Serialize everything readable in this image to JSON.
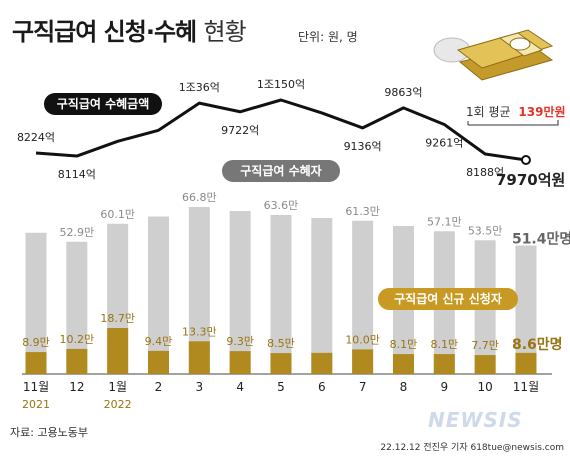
{
  "header": {
    "title_bold": "구직급여 신청·수혜",
    "title_light": "현황",
    "unit": "단위: 원, 명"
  },
  "legend": {
    "amount_label": "구직급여 수혜금액",
    "recipients_label": "구직급여 수혜자",
    "new_applicants_label": "구직급여 신규 신청자"
  },
  "callout": {
    "avg_prefix": "1회 평균",
    "avg_value": "139만원"
  },
  "colors": {
    "line": "#111111",
    "gray_bar": "#cfcfcf",
    "gold_bar": "#b08a1e",
    "gold_label": "#9a7412",
    "gray_label": "#8a8a8a",
    "accent_red": "#e8312a",
    "legend_gold_bg": "#c99a23"
  },
  "source": "자료: 고용노동부",
  "credit": "22.12.12 전진우 기자 618tue@newsis.com",
  "watermark": "NEWSIS",
  "chart_data": {
    "type": "bar",
    "categories": [
      "11월",
      "12",
      "1월",
      "2",
      "3",
      "4",
      "5",
      "6",
      "7",
      "8",
      "9",
      "10",
      "11월"
    ],
    "year_labels": [
      "2021",
      "",
      "2022",
      "",
      "",
      "",
      "",
      "",
      "",
      "",
      "",
      "",
      ""
    ],
    "series": [
      {
        "name": "구직급여 수혜금액",
        "chart": "line",
        "values": [
          8224,
          8114,
          null,
          null,
          10036,
          9722,
          10150,
          null,
          9136,
          9863,
          9261,
          8188,
          7970
        ],
        "labels": [
          "8224억",
          "8114억",
          "",
          "",
          "1조36억",
          "9722억",
          "1조150억",
          "",
          "9136억",
          "9863억",
          "9261억",
          "8188억",
          "7970억원"
        ]
      },
      {
        "name": "구직급여 수혜자",
        "chart": "bar",
        "values": [
          null,
          52.9,
          60.1,
          null,
          66.8,
          null,
          63.6,
          null,
          61.3,
          null,
          57.1,
          53.5,
          51.4
        ],
        "labels": [
          "",
          "52.9만",
          "60.1만",
          "",
          "66.8만",
          "",
          "63.6만",
          "",
          "61.3만",
          "",
          "57.1만",
          "53.5만",
          "51.4만명"
        ]
      },
      {
        "name": "구직급여 신규 신청자",
        "chart": "bar",
        "values": [
          8.9,
          10.2,
          18.7,
          9.4,
          13.3,
          9.3,
          8.5,
          null,
          10.0,
          8.1,
          8.1,
          7.7,
          8.6
        ],
        "labels": [
          "8.9만",
          "10.2만",
          "18.7만",
          "9.4만",
          "13.3만",
          "9.3만",
          "8.5만",
          "",
          "10.0만",
          "8.1만",
          "8.1만",
          "7.7만",
          "8.6만명"
        ]
      }
    ]
  }
}
